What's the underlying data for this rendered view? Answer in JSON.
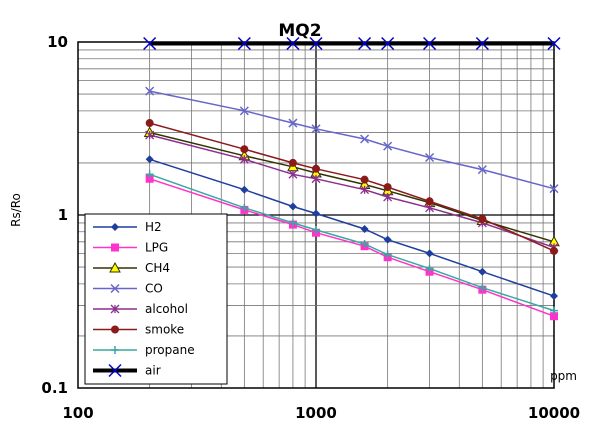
{
  "chart_data": {
    "type": "line",
    "title": "MQ2",
    "xlabel": "ppm",
    "ylabel": "Rs/Ro",
    "x_scale": "log",
    "y_scale": "log",
    "xlim": [
      100,
      10000
    ],
    "ylim": [
      0.1,
      10
    ],
    "x_tick_labels": [
      "100",
      "1000",
      "10000"
    ],
    "y_tick_labels": [
      "0.1",
      "1",
      "10"
    ],
    "grid": true,
    "legend_position": "lower-left",
    "x": [
      200,
      500,
      800,
      1000,
      1600,
      2000,
      3000,
      5000,
      10000
    ],
    "series": [
      {
        "name": "H2",
        "color": "#1f3f9f",
        "marker": "diamond",
        "values": [
          2.1,
          1.4,
          1.12,
          1.02,
          0.83,
          0.72,
          0.6,
          0.47,
          0.34
        ]
      },
      {
        "name": "LPG",
        "color": "#ff33cc",
        "marker": "square",
        "values": [
          1.62,
          1.07,
          0.88,
          0.79,
          0.66,
          0.57,
          0.47,
          0.37,
          0.26
        ]
      },
      {
        "name": "CH4",
        "color": "#333300",
        "marker": "triangle",
        "values": [
          3.0,
          2.2,
          1.9,
          1.75,
          1.5,
          1.38,
          1.18,
          0.93,
          0.7
        ]
      },
      {
        "name": "CO",
        "color": "#6666cc",
        "marker": "x",
        "values": [
          5.2,
          4.0,
          3.4,
          3.15,
          2.75,
          2.5,
          2.15,
          1.83,
          1.42
        ]
      },
      {
        "name": "alcohol",
        "color": "#8b2f8f",
        "marker": "star",
        "values": [
          2.9,
          2.1,
          1.72,
          1.62,
          1.4,
          1.27,
          1.1,
          0.9,
          0.65
        ]
      },
      {
        "name": "smoke",
        "color": "#8b1a1a",
        "marker": "circle",
        "values": [
          3.4,
          2.4,
          2.0,
          1.85,
          1.6,
          1.45,
          1.2,
          0.95,
          0.62
        ]
      },
      {
        "name": "propane",
        "color": "#3aa8a0",
        "marker": "plus",
        "values": [
          1.72,
          1.1,
          0.9,
          0.82,
          0.68,
          0.59,
          0.49,
          0.38,
          0.28
        ]
      },
      {
        "name": "air",
        "color": "#0000cc",
        "line_color": "#000000",
        "marker": "x",
        "values": [
          9.8,
          9.8,
          9.8,
          9.8,
          9.8,
          9.8,
          9.8,
          9.8,
          9.8
        ]
      }
    ]
  }
}
